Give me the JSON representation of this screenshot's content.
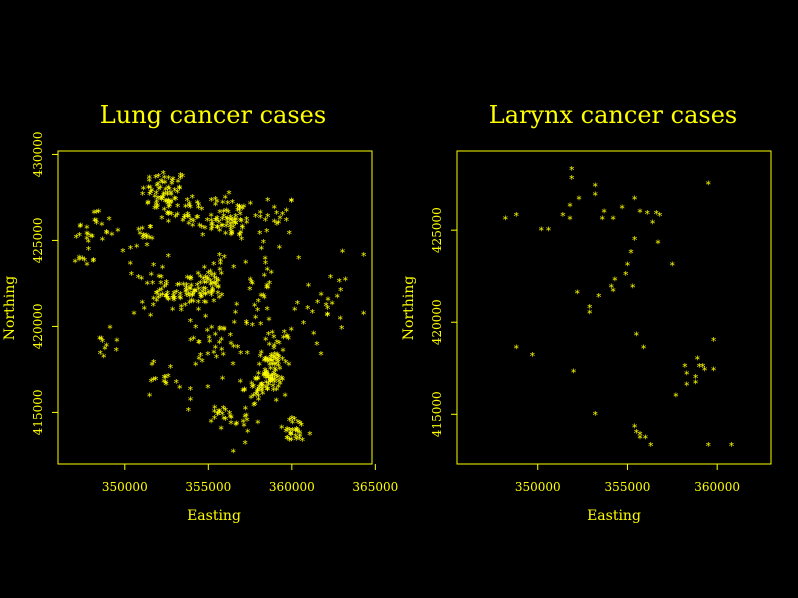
{
  "colors": {
    "background": "#000000",
    "foreground": "#ffff00"
  },
  "chart_data": [
    {
      "type": "scatter",
      "title": "Lung cancer cases",
      "xlabel": "Easting",
      "ylabel": "Northing",
      "xlim": [
        346000,
        364800
      ],
      "ylim": [
        412000,
        430200
      ],
      "xticks": [
        350000,
        355000,
        360000,
        365000
      ],
      "yticks": [
        415000,
        420000,
        425000,
        430000
      ],
      "marker": "*",
      "clusters": [
        {
          "cx": 352400,
          "cy": 427700,
          "sx": 700,
          "sy": 700,
          "n": 70
        },
        {
          "cx": 353700,
          "cy": 426700,
          "sx": 500,
          "sy": 500,
          "n": 25
        },
        {
          "cx": 351200,
          "cy": 425300,
          "sx": 400,
          "sy": 500,
          "n": 15
        },
        {
          "cx": 355200,
          "cy": 425900,
          "sx": 500,
          "sy": 350,
          "n": 18
        },
        {
          "cx": 356600,
          "cy": 426100,
          "sx": 500,
          "sy": 600,
          "n": 40
        },
        {
          "cx": 356000,
          "cy": 427200,
          "sx": 500,
          "sy": 350,
          "n": 12
        },
        {
          "cx": 359000,
          "cy": 426400,
          "sx": 600,
          "sy": 700,
          "n": 18
        },
        {
          "cx": 348200,
          "cy": 425600,
          "sx": 600,
          "sy": 700,
          "n": 22
        },
        {
          "cx": 347600,
          "cy": 424000,
          "sx": 500,
          "sy": 500,
          "n": 10
        },
        {
          "cx": 353900,
          "cy": 421900,
          "sx": 800,
          "sy": 500,
          "n": 70
        },
        {
          "cx": 355200,
          "cy": 422800,
          "sx": 500,
          "sy": 400,
          "n": 25
        },
        {
          "cx": 352100,
          "cy": 421600,
          "sx": 500,
          "sy": 500,
          "n": 15
        },
        {
          "cx": 358700,
          "cy": 417400,
          "sx": 400,
          "sy": 600,
          "n": 60
        },
        {
          "cx": 358200,
          "cy": 416400,
          "sx": 500,
          "sy": 400,
          "n": 40
        },
        {
          "cx": 359100,
          "cy": 418800,
          "sx": 400,
          "sy": 500,
          "n": 20
        },
        {
          "cx": 360200,
          "cy": 413800,
          "sx": 500,
          "sy": 400,
          "n": 30
        },
        {
          "cx": 355900,
          "cy": 414700,
          "sx": 500,
          "sy": 400,
          "n": 18
        },
        {
          "cx": 357200,
          "cy": 414300,
          "sx": 400,
          "sy": 400,
          "n": 10
        },
        {
          "cx": 352400,
          "cy": 417200,
          "sx": 400,
          "sy": 400,
          "n": 12
        },
        {
          "cx": 355200,
          "cy": 419300,
          "sx": 700,
          "sy": 600,
          "n": 22
        },
        {
          "cx": 348900,
          "cy": 418900,
          "sx": 300,
          "sy": 500,
          "n": 10
        },
        {
          "cx": 358100,
          "cy": 422300,
          "sx": 400,
          "sy": 1100,
          "n": 22
        },
        {
          "cx": 361600,
          "cy": 420900,
          "sx": 900,
          "sy": 1300,
          "n": 18
        },
        {
          "cx": 363000,
          "cy": 422500,
          "sx": 900,
          "sy": 1200,
          "n": 10
        },
        {
          "cx": 357000,
          "cy": 418500,
          "sx": 1000,
          "sy": 1500,
          "n": 20
        },
        {
          "cx": 354000,
          "cy": 417000,
          "sx": 1000,
          "sy": 1200,
          "n": 12
        },
        {
          "cx": 356000,
          "cy": 423800,
          "sx": 1800,
          "sy": 1500,
          "n": 30
        },
        {
          "cx": 350500,
          "cy": 422500,
          "sx": 1200,
          "sy": 1500,
          "n": 12
        }
      ]
    },
    {
      "type": "scatter",
      "title": "Larynx cancer cases",
      "xlabel": "Easting",
      "ylabel": "Northing",
      "xlim": [
        345500,
        363000
      ],
      "ylim": [
        412300,
        429300
      ],
      "xticks": [
        350000,
        355000,
        360000
      ],
      "yticks": [
        415000,
        420000,
        425000
      ],
      "marker": "*",
      "points": [
        [
          348200,
          425600
        ],
        [
          348800,
          425800
        ],
        [
          350200,
          425000
        ],
        [
          350600,
          425000
        ],
        [
          351400,
          425800
        ],
        [
          351800,
          426300
        ],
        [
          351900,
          427800
        ],
        [
          351900,
          428300
        ],
        [
          352300,
          426700
        ],
        [
          353200,
          427400
        ],
        [
          353200,
          426900
        ],
        [
          353600,
          425600
        ],
        [
          354200,
          425600
        ],
        [
          354700,
          426200
        ],
        [
          355400,
          426700
        ],
        [
          355700,
          426000
        ],
        [
          356100,
          425900
        ],
        [
          356400,
          425400
        ],
        [
          356600,
          425900
        ],
        [
          356700,
          424300
        ],
        [
          356800,
          425800
        ],
        [
          355400,
          424500
        ],
        [
          355200,
          423800
        ],
        [
          355000,
          423100
        ],
        [
          354900,
          422600
        ],
        [
          354300,
          422300
        ],
        [
          354100,
          421900
        ],
        [
          355300,
          421900
        ],
        [
          352200,
          421600
        ],
        [
          352900,
          420500
        ],
        [
          352900,
          420800
        ],
        [
          353400,
          421400
        ],
        [
          354200,
          421700
        ],
        [
          357500,
          423100
        ],
        [
          359500,
          427500
        ],
        [
          348800,
          418600
        ],
        [
          349700,
          418200
        ],
        [
          352000,
          417300
        ],
        [
          355500,
          419300
        ],
        [
          355900,
          418600
        ],
        [
          359800,
          419000
        ],
        [
          358900,
          418000
        ],
        [
          359000,
          417600
        ],
        [
          359300,
          417400
        ],
        [
          359800,
          417400
        ],
        [
          358200,
          417600
        ],
        [
          358300,
          417200
        ],
        [
          358800,
          417000
        ],
        [
          357700,
          416000
        ],
        [
          358300,
          416600
        ],
        [
          358800,
          416700
        ],
        [
          355400,
          414300
        ],
        [
          355500,
          414000
        ],
        [
          355700,
          413700
        ],
        [
          356000,
          413700
        ],
        [
          356300,
          413300
        ],
        [
          353200,
          415000
        ],
        [
          359500,
          413300
        ],
        [
          360800,
          413300
        ],
        [
          359200,
          417600
        ],
        [
          355700,
          413900
        ],
        [
          351800,
          425600
        ],
        [
          353700,
          426000
        ]
      ]
    }
  ]
}
